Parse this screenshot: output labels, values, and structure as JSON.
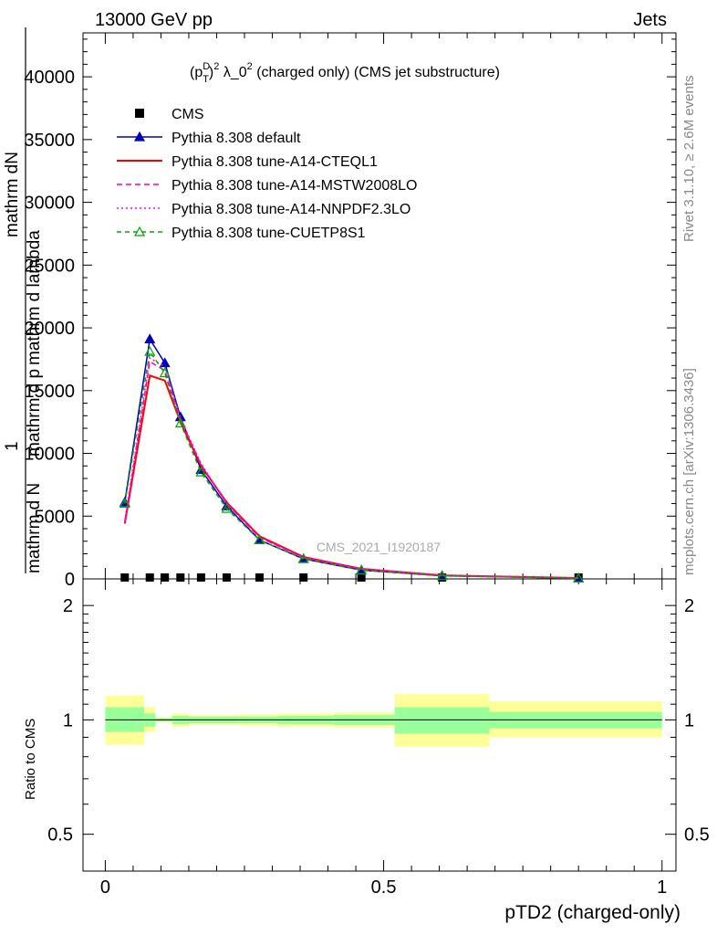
{
  "header": {
    "left": "13000 GeV pp",
    "right": "Jets"
  },
  "side_labels": {
    "rivet": "Rivet 3.1.10, ≥ 2.6M events",
    "mcplots": "mcplots.cern.ch [arXiv:1306.3436]"
  },
  "watermark": "CMS_2021_I1920187",
  "main_title": {
    "p": "(p",
    "sup_d": "D",
    "sub_t": "T",
    "close": ")",
    "sup_2": "2",
    "lambda": " λ_0",
    "sup_2b": "2",
    "rest": " (charged only) (CMS jet substructure)"
  },
  "chart_data": [
    {
      "type": "line",
      "panel": "main",
      "title": "(p_T^D)^2 λ_0^2 (charged only) (CMS jet substructure)",
      "xlabel": "pTD2 (charged-only)",
      "ylabel_lines": [
        "1",
        "mathrm d N",
        "mathrm d p",
        "mathrm d lambda",
        "mathrm dN"
      ],
      "xlim": [
        -0.04,
        1.025
      ],
      "ylim": [
        0,
        43500
      ],
      "yticks": [
        0,
        5000,
        10000,
        15000,
        20000,
        25000,
        30000,
        35000,
        40000
      ],
      "ytick_labels": [
        "0",
        "5000",
        "10000",
        "15000",
        "20000",
        "25000",
        "30000",
        "35000",
        "40000"
      ],
      "legend_position": "top-left",
      "series": [
        {
          "name": "CMS",
          "color": "#000000",
          "style": "data",
          "x": [
            0.035,
            0.08,
            0.107,
            0.135,
            0.172,
            0.218,
            0.277,
            0.356,
            0.46,
            0.605,
            0.85
          ],
          "values": [
            40,
            40,
            40,
            40,
            40,
            40,
            40,
            40,
            40,
            40,
            40
          ]
        },
        {
          "name": "Pythia 8.308 default",
          "color": "#0000bb",
          "style": "solid-tri",
          "x": [
            0.035,
            0.08,
            0.107,
            0.135,
            0.172,
            0.218,
            0.277,
            0.356,
            0.46,
            0.605,
            0.85
          ],
          "values": [
            6100,
            19100,
            17200,
            12900,
            8700,
            5800,
            3100,
            1600,
            700,
            250,
            60
          ]
        },
        {
          "name": "Pythia 8.308 tune-A14-CTEQL1",
          "color": "#ff0000",
          "style": "solid",
          "x": [
            0.035,
            0.08,
            0.107,
            0.135,
            0.172,
            0.218,
            0.277,
            0.356,
            0.46,
            0.605,
            0.85
          ],
          "values": [
            4400,
            16200,
            15800,
            12500,
            9000,
            6100,
            3400,
            1750,
            800,
            280,
            70
          ]
        },
        {
          "name": "Pythia 8.308 tune-A14-MSTW2008LO",
          "color": "#ff00a0",
          "style": "dashed",
          "x": [
            0.035,
            0.08,
            0.107,
            0.135,
            0.172,
            0.218,
            0.277,
            0.356,
            0.46,
            0.605,
            0.85
          ],
          "values": [
            4500,
            17300,
            16600,
            12700,
            9100,
            6000,
            3300,
            1700,
            780,
            270,
            65
          ]
        },
        {
          "name": "Pythia 8.308 tune-A14-NNPDF2.3LO",
          "color": "#ff00ff",
          "style": "dotted",
          "x": [
            0.035,
            0.08,
            0.107,
            0.135,
            0.172,
            0.218,
            0.277,
            0.356,
            0.46,
            0.605,
            0.85
          ],
          "values": [
            4600,
            17600,
            16900,
            12800,
            9200,
            6000,
            3300,
            1700,
            780,
            270,
            65
          ]
        },
        {
          "name": "Pythia 8.308 tune-CUETP8S1",
          "color": "#00aa00",
          "style": "dashed-opentri",
          "x": [
            0.035,
            0.08,
            0.107,
            0.135,
            0.172,
            0.218,
            0.277,
            0.356,
            0.46,
            0.605,
            0.85
          ],
          "values": [
            6000,
            18100,
            16400,
            12400,
            8500,
            5600,
            3100,
            1600,
            690,
            240,
            55
          ]
        }
      ]
    },
    {
      "type": "area",
      "panel": "ratio",
      "ylabel": "Ratio to CMS",
      "xlabel": "pTD2 (charged-only)",
      "xlim": [
        -0.04,
        1.025
      ],
      "ylim": [
        0.4,
        2.35
      ],
      "log_y": true,
      "yticks": [
        0.5,
        1,
        2
      ],
      "ytick_labels": [
        "0.5",
        "1",
        "2"
      ],
      "xticks": [
        0,
        0.5,
        1
      ],
      "xtick_labels": [
        "0",
        "0.5",
        "1"
      ],
      "bins": [
        {
          "lo": 0.0,
          "hi": 0.07,
          "stat": [
            0.93,
            1.08
          ],
          "tot": [
            0.86,
            1.16
          ]
        },
        {
          "lo": 0.07,
          "hi": 0.09,
          "stat": [
            0.96,
            1.04
          ],
          "tot": [
            0.93,
            1.08
          ]
        },
        {
          "lo": 0.09,
          "hi": 0.12,
          "stat": [
            0.99,
            1.01
          ],
          "tot": [
            0.985,
            1.015
          ]
        },
        {
          "lo": 0.12,
          "hi": 0.15,
          "stat": [
            0.975,
            1.025
          ],
          "tot": [
            0.96,
            1.04
          ]
        },
        {
          "lo": 0.15,
          "hi": 0.195,
          "stat": [
            0.98,
            1.02
          ],
          "tot": [
            0.97,
            1.03
          ]
        },
        {
          "lo": 0.195,
          "hi": 0.24,
          "stat": [
            0.98,
            1.02
          ],
          "tot": [
            0.97,
            1.03
          ]
        },
        {
          "lo": 0.24,
          "hi": 0.31,
          "stat": [
            0.98,
            1.02
          ],
          "tot": [
            0.965,
            1.035
          ]
        },
        {
          "lo": 0.31,
          "hi": 0.41,
          "stat": [
            0.975,
            1.025
          ],
          "tot": [
            0.96,
            1.04
          ]
        },
        {
          "lo": 0.41,
          "hi": 0.52,
          "stat": [
            0.97,
            1.03
          ],
          "tot": [
            0.955,
            1.045
          ]
        },
        {
          "lo": 0.52,
          "hi": 0.69,
          "stat": [
            0.92,
            1.08
          ],
          "tot": [
            0.85,
            1.17
          ]
        },
        {
          "lo": 0.69,
          "hi": 1.0,
          "stat": [
            0.95,
            1.05
          ],
          "tot": [
            0.9,
            1.12
          ]
        }
      ],
      "band_colors": {
        "stat": "#99ff99",
        "tot": "#ffff99"
      }
    }
  ]
}
